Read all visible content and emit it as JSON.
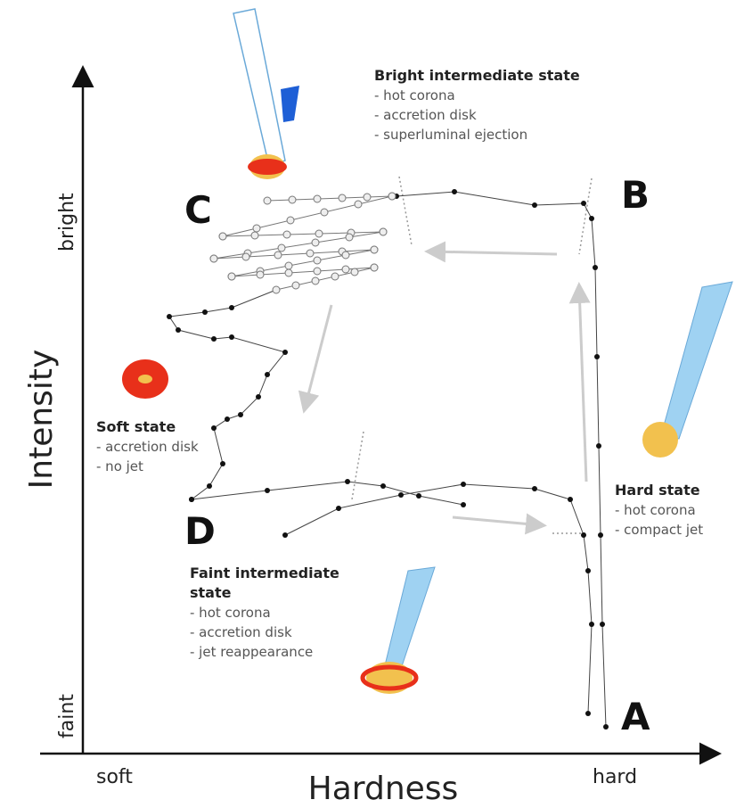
{
  "axes": {
    "x_label": "Hardness",
    "y_label": "Intensity",
    "x_low": "soft",
    "x_high": "hard",
    "y_low": "faint",
    "y_high": "bright"
  },
  "states": [
    "A",
    "B",
    "C",
    "D"
  ],
  "annotations": [
    {
      "title_lines": [
        "Bright intermediate state"
      ],
      "items": [
        "- hot corona",
        "- accretion disk",
        "- superluminal ejection"
      ]
    },
    {
      "title_lines": [
        "Soft state"
      ],
      "items": [
        "- accretion disk",
        "- no jet"
      ]
    },
    {
      "title_lines": [
        "Hard state"
      ],
      "items": [
        "- hot corona",
        "- compact jet"
      ]
    },
    {
      "title_lines": [
        "Faint intermediate",
        "state"
      ],
      "items": [
        "- hot corona",
        "- accretion disk",
        "- jet reappearance"
      ]
    }
  ]
}
